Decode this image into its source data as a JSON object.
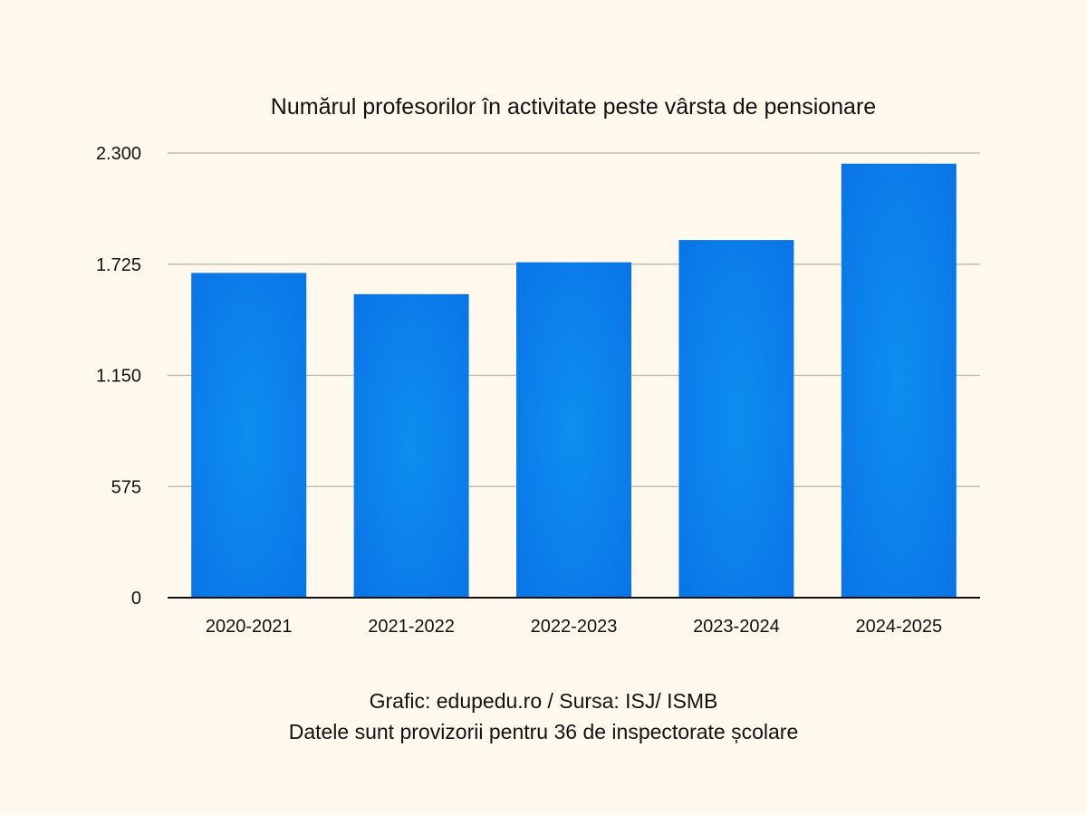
{
  "chart_data": {
    "type": "bar",
    "title": "Numărul profesorilor în activitate peste vârsta de pensionare",
    "categories": [
      "2020-2021",
      "2021-2022",
      "2022-2023",
      "2023-2024",
      "2024-2025"
    ],
    "values": [
      1680,
      1570,
      1735,
      1850,
      2245
    ],
    "ylim": [
      0,
      2300
    ],
    "yticks": [
      0,
      575,
      1150,
      1725,
      2300
    ],
    "ytick_labels": [
      "0",
      "575",
      "1.150",
      "1.725",
      "2.300"
    ],
    "xlabel": "",
    "ylabel": "",
    "grid": true,
    "bar_color": "#0a7de8"
  },
  "footer": {
    "line1": "Grafic: edupedu.ro / Sursa: ISJ/ ISMB",
    "line2": "Datele sunt provizorii pentru 36 de inspectorate școlare"
  }
}
